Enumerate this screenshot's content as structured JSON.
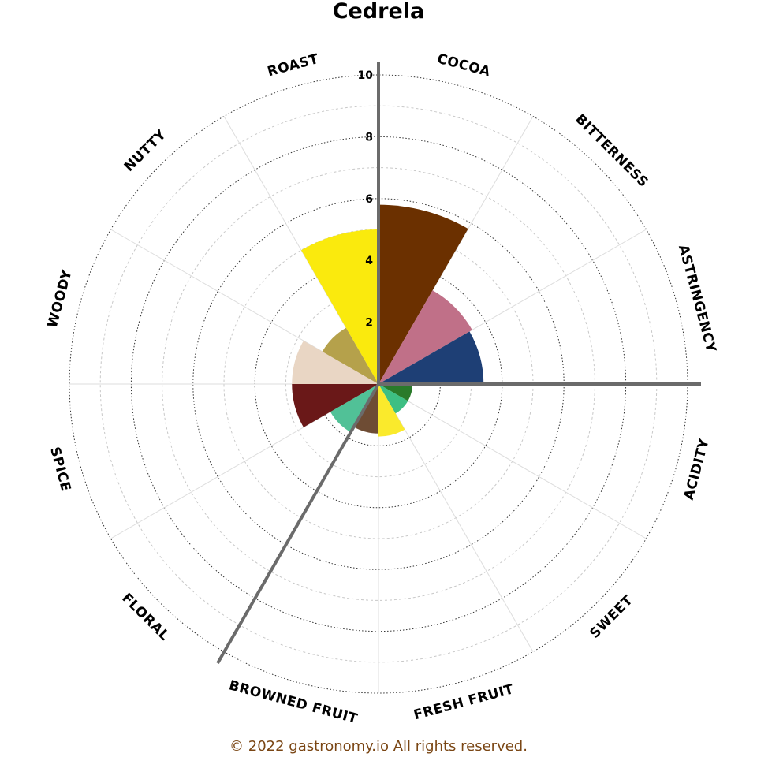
{
  "chart_data": {
    "type": "polar-bar",
    "title": "Cedrela",
    "rlim": [
      0,
      10
    ],
    "rticks": [
      2,
      4,
      6,
      8,
      10
    ],
    "grid": true,
    "categories": [
      "COCOA",
      "BITTERNESS",
      "ASTRINGENCY",
      "ACIDITY",
      "SWEET",
      "FRESH FRUIT",
      "BROWNED FRUIT",
      "FLORAL",
      "SPICE",
      "WOODY",
      "NUTTY",
      "ROAST"
    ],
    "series": [
      {
        "values": [
          5.8,
          3.5,
          3.4,
          1.1,
          1.1,
          1.7,
          1.6,
          1.8,
          2.8,
          2.8,
          2.1,
          5.0
        ],
        "colors": [
          "#6B3000",
          "#C07088",
          "#1E3F75",
          "#2A7A2A",
          "#3DBF83",
          "#FAEA2C",
          "#6E4C34",
          "#51C197",
          "#6A1818",
          "#E9D6C4",
          "#B5A14B",
          "#FAEA0D"
        ]
      }
    ]
  },
  "footer": {
    "text": "© 2022 gastronomy.io All rights reserved.",
    "color": "#7A4614"
  }
}
